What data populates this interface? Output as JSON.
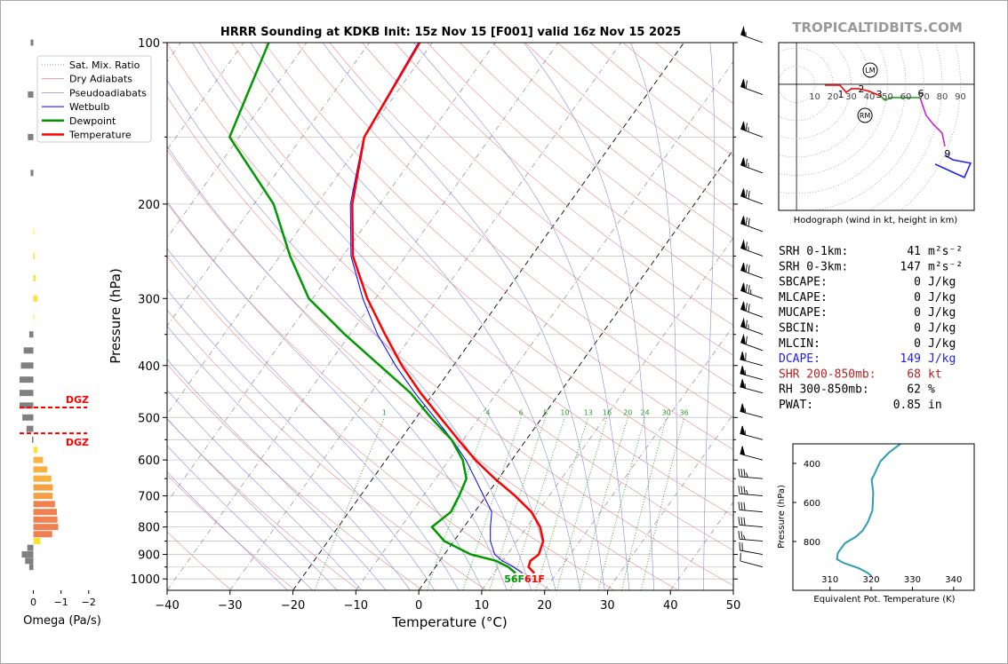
{
  "brand": "TROPICALTIDBITS.COM",
  "chart_data": [
    {
      "type": "skewt",
      "title": "HRRR Sounding at KDKB Init: 15z Nov 15 [F001] valid 16z Nov 15 2025",
      "xlabel": "Temperature (°C)",
      "ylabel": "Pressure (hPa)",
      "xlim": [
        -40,
        50
      ],
      "ylim": [
        1050,
        100
      ],
      "log_y": true,
      "xticks": [
        {
          "value": -40,
          "label": "−40"
        },
        {
          "value": -30,
          "label": "−30"
        },
        {
          "value": -20,
          "label": "−20"
        },
        {
          "value": -10,
          "label": "−10"
        },
        0,
        10,
        20,
        30,
        40,
        50
      ],
      "yticks": [
        100,
        200,
        300,
        400,
        500,
        600,
        700,
        800,
        900,
        1000
      ],
      "yticks_minor": [
        150,
        250,
        350,
        450,
        550,
        650,
        750,
        850,
        950
      ],
      "pressure": [
        975,
        950,
        925,
        900,
        850,
        800,
        750,
        700,
        650,
        600,
        550,
        500,
        450,
        400,
        350,
        300,
        250,
        200,
        150,
        100
      ],
      "series": [
        {
          "name": "Wetbulb",
          "color": "#0000ff",
          "values": [
            14.5,
            12.4,
            9.9,
            8.0,
            5.8,
            4.2,
            2.7,
            -0.4,
            -3.7,
            -7.3,
            -11.8,
            -17.1,
            -23.0,
            -29.2,
            -35.6,
            -42.0,
            -48.7,
            -54.7,
            -60.2,
            -62.2
          ]
        },
        {
          "name": "Dewpoint",
          "color": "#009900",
          "values": [
            13.4,
            11.6,
            8.9,
            4.2,
            -1.5,
            -5.1,
            -3.8,
            -4.3,
            -5.1,
            -7.8,
            -11.9,
            -17.7,
            -23.7,
            -31.7,
            -40.8,
            -50.6,
            -58.4,
            -66.9,
            -81.5,
            -86.0
          ]
        },
        {
          "name": "Temperature",
          "color": "#ff0000",
          "values": [
            16.4,
            14.8,
            14.4,
            15.0,
            14.2,
            12.1,
            9.0,
            4.6,
            -0.6,
            -5.8,
            -10.8,
            -16.2,
            -22.1,
            -28.2,
            -34.4,
            -41.3,
            -48.4,
            -54.4,
            -60.1,
            -62.0
          ]
        }
      ],
      "reference": [
        {
          "name": "Sat. Mix. Ratio",
          "color": "#2ca02c"
        },
        {
          "name": "Dry Adiabats",
          "color": "#e08c8c"
        },
        {
          "name": "Pseudoadiabats",
          "color": "#8c8cd8"
        }
      ],
      "mixing_ratios": [
        1,
        4,
        6,
        8,
        10,
        13,
        16,
        20,
        24,
        30,
        36
      ],
      "surface_labels": [
        {
          "text": "56F",
          "color": "#009900"
        },
        {
          "text": "61F",
          "color": "#ff0000"
        }
      ],
      "wind": {
        "pressure": [
          100,
          125,
          150,
          175,
          200,
          225,
          250,
          275,
          300,
          325,
          350,
          375,
          400,
          425,
          450,
          500,
          550,
          600,
          650,
          700,
          750,
          800,
          850,
          900,
          950
        ],
        "speed": [
          55,
          60,
          65,
          65,
          70,
          70,
          65,
          70,
          75,
          70,
          65,
          60,
          60,
          55,
          55,
          55,
          55,
          50,
          35,
          35,
          30,
          30,
          25,
          20,
          10
        ],
        "direction": [
          290,
          290,
          290,
          290,
          290,
          290,
          290,
          290,
          290,
          290,
          290,
          290,
          285,
          285,
          285,
          285,
          285,
          285,
          275,
          275,
          275,
          275,
          275,
          280,
          285
        ]
      }
    },
    {
      "type": "hbar",
      "xlabel": "Omega (Pa/s)",
      "xlim": [
        0.5,
        -2.2
      ],
      "ylim": [
        1050,
        100
      ],
      "xticks": [
        0,
        {
          "value": -1,
          "label": "−1"
        },
        {
          "value": -2,
          "label": "−2"
        }
      ],
      "pressure": [
        100,
        125,
        150,
        175,
        225,
        250,
        275,
        300,
        325,
        350,
        375,
        400,
        425,
        450,
        475,
        500,
        525,
        550,
        575,
        600,
        625,
        650,
        675,
        700,
        725,
        750,
        775,
        800,
        825,
        850,
        875,
        900,
        925,
        950
      ],
      "values": [
        0.1,
        0.2,
        0.2,
        0.1,
        -0.03,
        -0.05,
        -0.08,
        -0.15,
        -0.03,
        0.15,
        0.35,
        0.45,
        0.5,
        0.5,
        0.5,
        0.4,
        0.25,
        0.05,
        -0.15,
        -0.35,
        -0.5,
        -0.65,
        -0.7,
        -0.7,
        -0.78,
        -0.85,
        -0.87,
        -0.9,
        -0.68,
        -0.26,
        0.22,
        0.42,
        0.3,
        0.15
      ],
      "colors": [
        "#808080",
        "#808080",
        "#808080",
        "#808080",
        "#ffe135",
        "#ffe135",
        "#ffe135",
        "#ffe135",
        "#ffe135",
        "#808080",
        "#808080",
        "#808080",
        "#808080",
        "#808080",
        "#808080",
        "#808080",
        "#808080",
        "#808080",
        "#ffe135",
        "#f9b040",
        "#f9b040",
        "#f9b040",
        "#f5a045",
        "#f5a045",
        "#ef8050",
        "#ef8050",
        "#ef8050",
        "#ef8050",
        "#ef8050",
        "#ffe135",
        "#808080",
        "#808080",
        "#808080",
        "#808080"
      ],
      "dgz": [
        {
          "label": "DGZ",
          "pressure": 479
        },
        {
          "label": "DGZ",
          "pressure": 535
        }
      ]
    },
    {
      "type": "hodograph",
      "caption": "Hodograph (wind in kt, height in km)",
      "xlim": [
        -9.8,
        97.6
      ],
      "ylim": [
        -69.3,
        22.9
      ],
      "rings": [
        10,
        20,
        30,
        40,
        50,
        60,
        70,
        80,
        90
      ],
      "series": [
        {
          "color": "#ff0000",
          "u": [
            15.6,
            23.9,
            27.3,
            30.2,
            34.1,
            40.0,
            45.9
          ],
          "v": [
            -0.5,
            -0.5,
            -4.4,
            -2.4,
            -2.4,
            -3.9,
            -6.3
          ]
        },
        {
          "color": "#22aa22",
          "u": [
            45.9,
            48.8,
            51.7,
            67.8
          ],
          "v": [
            -6.3,
            -8.8,
            -7.3,
            -7.3
          ]
        },
        {
          "color": "#cc22cc",
          "u": [
            67.8,
            71.2,
            75.1,
            80.0,
            81.5
          ],
          "v": [
            -7.3,
            -17.1,
            -22.0,
            -26.8,
            -34.1
          ]
        },
        {
          "color": "#2222ee",
          "u": [
            81.5,
            85.9,
            95.6,
            92.2,
            76.1
          ],
          "v": [
            -39.0,
            -41.5,
            -43.4,
            -51.2,
            -43.9
          ]
        }
      ],
      "height_labels": [
        {
          "label": 1,
          "u": 24.4,
          "v": -5.4
        },
        {
          "label": 2,
          "u": 35.6,
          "v": -2.4
        },
        {
          "label": 3,
          "u": 45.4,
          "v": -5.4
        },
        {
          "label": 6,
          "u": 68.3,
          "v": -4.9
        },
        {
          "label": 9,
          "u": 82.9,
          "v": -38.0
        }
      ],
      "storm_motion": [
        {
          "label": "LM",
          "u": 40.5,
          "v": 7.8
        },
        {
          "label": "RM",
          "u": 37.6,
          "v": -17.1
        }
      ]
    },
    {
      "type": "line",
      "xlabel": "Equivalent Pot. Temperature (K)",
      "ylabel": "Pressure (hPa)",
      "xlim": [
        301,
        345
      ],
      "ylim": [
        1050,
        300
      ],
      "xticks": [
        310,
        320,
        330,
        340
      ],
      "yticks": [
        400,
        600,
        800
      ],
      "series": [
        {
          "color": "#2e9cb5",
          "values": [
            327.1,
            324.3,
            322.2,
            320.7,
            320.1,
            320.5,
            320.3,
            319.2,
            317.9,
            316.2,
            313.6,
            311.9,
            311.7,
            313.2,
            316.9,
            319.0,
            320.1
          ],
          "pressure": [
            300,
            345,
            391,
            459,
            482,
            550,
            641,
            700,
            745,
            777,
            809,
            859,
            891,
            909,
            936,
            959,
            977
          ]
        }
      ]
    }
  ],
  "stats": {
    "rows": [
      {
        "label": "SRH 0-1km:",
        "value": 41,
        "unit": "m²s⁻²",
        "color": "#000000"
      },
      {
        "label": "SRH 0-3km:",
        "value": 147,
        "unit": "m²s⁻²",
        "color": "#000000"
      },
      {
        "label": "SBCAPE:",
        "value": 0,
        "unit": "J/kg",
        "color": "#000000"
      },
      {
        "label": "MLCAPE:",
        "value": 0,
        "unit": "J/kg",
        "color": "#000000"
      },
      {
        "label": "MUCAPE:",
        "value": 0,
        "unit": "J/kg",
        "color": "#000000"
      },
      {
        "label": "SBCIN:",
        "value": 0,
        "unit": "J/kg",
        "color": "#000000"
      },
      {
        "label": "MLCIN:",
        "value": 0,
        "unit": "J/kg",
        "color": "#000000"
      },
      {
        "label": "DCAPE:",
        "value": 149,
        "unit": "J/kg",
        "color": "#2222dd"
      },
      {
        "label": "SHR 200-850mb:",
        "value": 68,
        "unit": "kt",
        "color": "#b22222"
      },
      {
        "label": "RH 300-850mb:",
        "value": 62,
        "unit": "%",
        "color": "#000000"
      },
      {
        "label": "PWAT:",
        "value": 0.85,
        "unit": "in",
        "color": "#000000"
      }
    ]
  }
}
